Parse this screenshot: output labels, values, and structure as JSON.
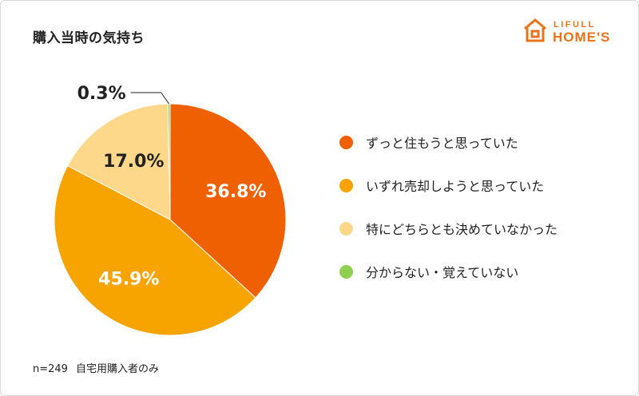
{
  "title": "購入当時の気持ち",
  "logo": {
    "top": "LIFULL",
    "bottom": "HOME'S",
    "icon": "house-icon",
    "color": "#e8731a"
  },
  "chart_data": {
    "type": "pie",
    "categories": [
      "ずっと住もうと思っていた",
      "いずれ売却しようと思っていた",
      "特にどちらとも決めていなかった",
      "分からない・覚えていない"
    ],
    "values": [
      36.8,
      45.9,
      17.0,
      0.3
    ],
    "labels": [
      "36.8%",
      "45.9%",
      "17.0%",
      "0.3%"
    ],
    "colors": [
      "#ee6002",
      "#f7a400",
      "#fdd88a",
      "#8fd14f"
    ],
    "label_colors": [
      "#ffffff",
      "#ffffff",
      "#222222",
      "#222222"
    ],
    "start_angle_deg": 0,
    "direction": "clockwise",
    "legend_position": "right"
  },
  "footnote": {
    "sample": "n=249",
    "note": "自宅用購入者のみ"
  }
}
